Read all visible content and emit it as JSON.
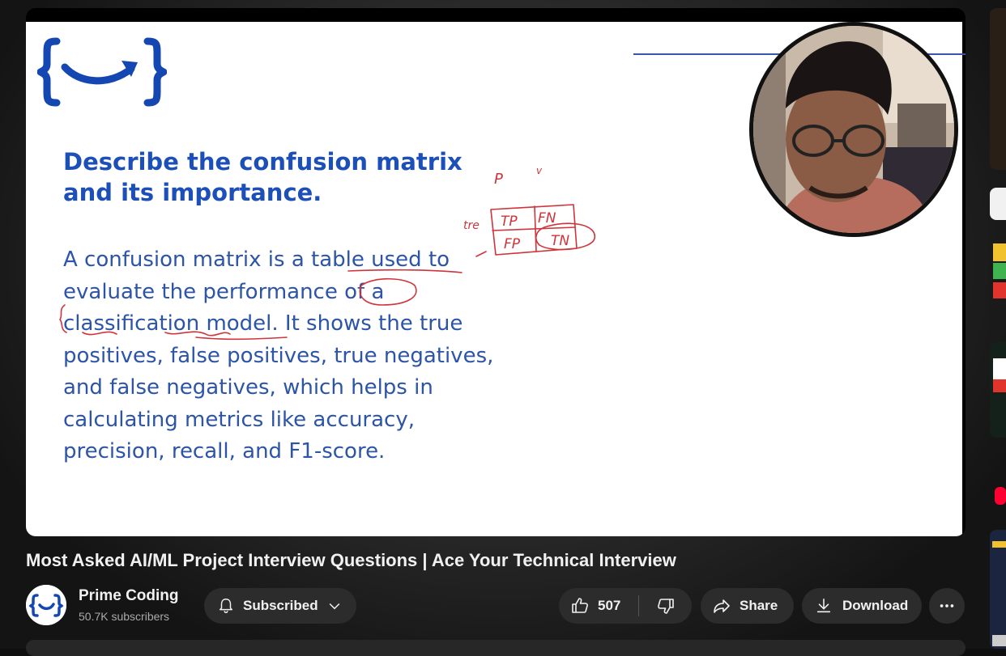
{
  "slide": {
    "title_line1": "Describe the confusion matrix",
    "title_line2": "and its importance.",
    "body_lines": [
      "A confusion matrix is a table used to",
      "evaluate the performance of a",
      "classification model. It shows the true",
      "positives, false positives, true negatives,",
      "and false negatives, which helps in",
      "calculating metrics like accuracy,",
      "precision, recall, and F1-score."
    ],
    "annotations": {
      "p": "P",
      "v": "v",
      "tre": "tre",
      "tp": "TP",
      "fn": "FN",
      "fp": "FP",
      "tn": "TN"
    },
    "brand_color": "#1d4fb8",
    "ink_color": "#d0343a"
  },
  "video": {
    "title": "Most Asked AI/ML Project Interview Questions | Ace Your Technical Interview"
  },
  "channel": {
    "name": "Prime Coding",
    "subscribers": "50.7K subscribers"
  },
  "actions": {
    "subscribed_label": "Subscribed",
    "like_count": "507",
    "share_label": "Share",
    "download_label": "Download"
  },
  "icons": [
    "bell-icon",
    "chevron-down-icon",
    "thumbs-up-icon",
    "thumbs-down-icon",
    "share-arrow-icon",
    "download-icon",
    "more-dots-icon",
    "channel-logo-icon"
  ]
}
